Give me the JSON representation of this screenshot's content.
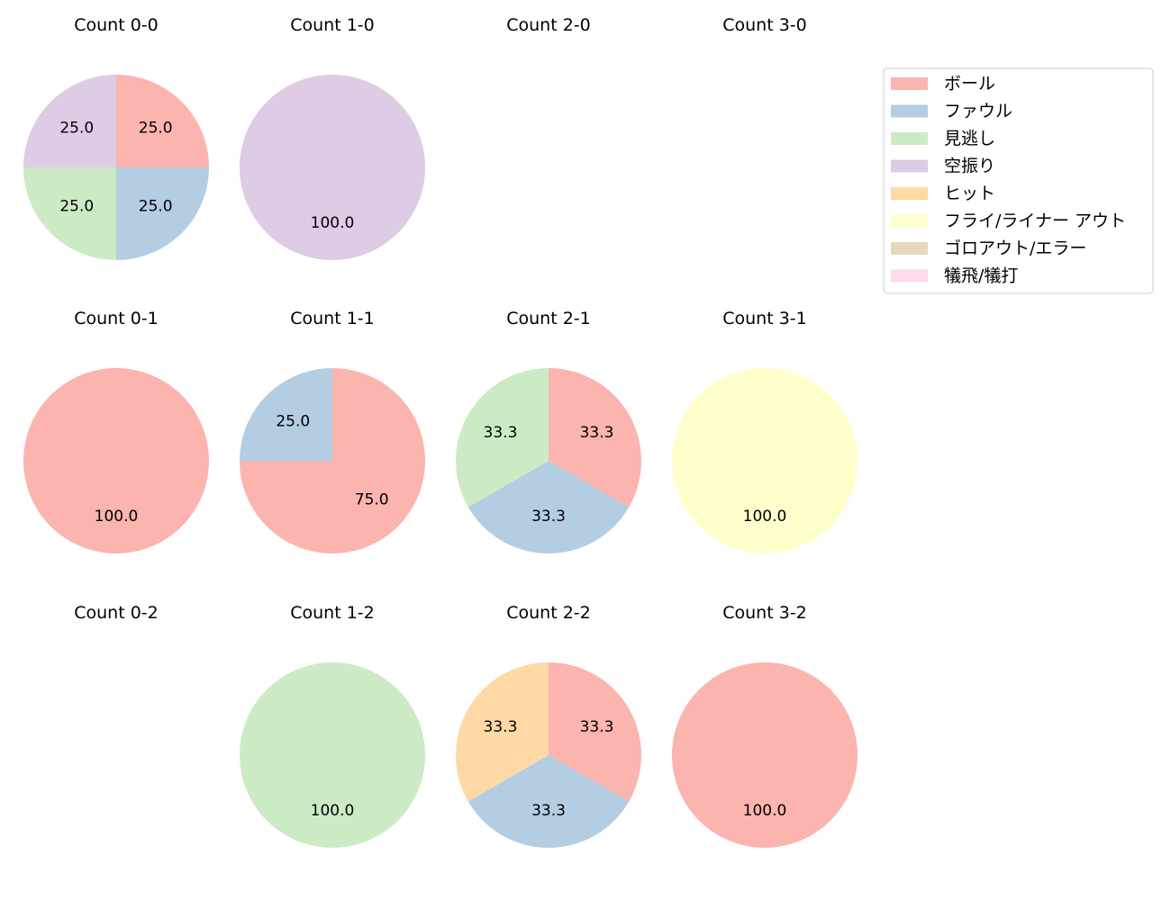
{
  "categories": [
    "ボール",
    "ファウル",
    "見逃し",
    "空振り",
    "ヒット",
    "フライ/ライナー アウト",
    "ゴロアウト/エラー",
    "犠飛/犠打"
  ],
  "colors": {
    "ボール": "#fbb4ae",
    "ファウル": "#b3cde3",
    "見逃し": "#ccebc5",
    "空振り": "#decbe4",
    "ヒット": "#fed9a6",
    "フライ/ライナー アウト": "#ffffcc",
    "ゴロアウト/エラー": "#e5d8bd",
    "犠飛/犠打": "#fddaec"
  },
  "chart_data": [
    {
      "type": "pie",
      "title": "Count 0-0",
      "slices": [
        {
          "label": "ボール",
          "value": 25.0
        },
        {
          "label": "ファウル",
          "value": 25.0
        },
        {
          "label": "見逃し",
          "value": 25.0
        },
        {
          "label": "空振り",
          "value": 25.0
        }
      ]
    },
    {
      "type": "pie",
      "title": "Count 1-0",
      "slices": [
        {
          "label": "空振り",
          "value": 100.0
        }
      ]
    },
    {
      "type": "pie",
      "title": "Count 2-0",
      "slices": []
    },
    {
      "type": "pie",
      "title": "Count 3-0",
      "slices": []
    },
    {
      "type": "pie",
      "title": "Count 0-1",
      "slices": [
        {
          "label": "ボール",
          "value": 100.0
        }
      ]
    },
    {
      "type": "pie",
      "title": "Count 1-1",
      "slices": [
        {
          "label": "ボール",
          "value": 75.0
        },
        {
          "label": "ファウル",
          "value": 25.0
        }
      ]
    },
    {
      "type": "pie",
      "title": "Count 2-1",
      "slices": [
        {
          "label": "ボール",
          "value": 33.3
        },
        {
          "label": "ファウル",
          "value": 33.3
        },
        {
          "label": "見逃し",
          "value": 33.3
        }
      ]
    },
    {
      "type": "pie",
      "title": "Count 3-1",
      "slices": [
        {
          "label": "フライ/ライナー アウト",
          "value": 100.0
        }
      ]
    },
    {
      "type": "pie",
      "title": "Count 0-2",
      "slices": []
    },
    {
      "type": "pie",
      "title": "Count 1-2",
      "slices": [
        {
          "label": "見逃し",
          "value": 100.0
        }
      ]
    },
    {
      "type": "pie",
      "title": "Count 2-2",
      "slices": [
        {
          "label": "ボール",
          "value": 33.3
        },
        {
          "label": "ファウル",
          "value": 33.3
        },
        {
          "label": "ヒット",
          "value": 33.3
        }
      ]
    },
    {
      "type": "pie",
      "title": "Count 3-2",
      "slices": [
        {
          "label": "ボール",
          "value": 100.0
        }
      ]
    }
  ]
}
